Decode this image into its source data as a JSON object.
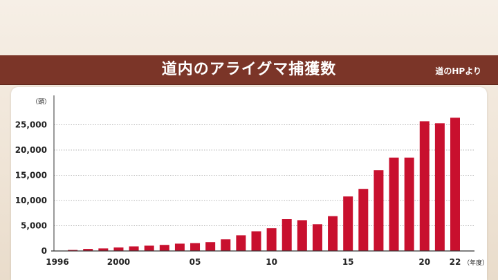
{
  "header": {
    "title": "道内のアライグマ捕獲数",
    "source": "道のHPより"
  },
  "colors": {
    "banner": "#7b3528",
    "bar": "#c8102e"
  },
  "chart_data": {
    "type": "bar",
    "title": "道内のアライグマ捕獲数",
    "ylabel": "（頭）",
    "xlabel": "（年度）",
    "ylim": [
      0,
      30000
    ],
    "grid": true,
    "legend": "none",
    "categories": [
      "1996",
      "1997",
      "1998",
      "1999",
      "2000",
      "2001",
      "2002",
      "2003",
      "2004",
      "2005",
      "2006",
      "2007",
      "2008",
      "2009",
      "2010",
      "2011",
      "2012",
      "2013",
      "2014",
      "2015",
      "2016",
      "2017",
      "2018",
      "2019",
      "2020",
      "2021",
      "2022"
    ],
    "values": [
      0,
      200,
      400,
      500,
      700,
      900,
      1050,
      1200,
      1450,
      1550,
      1750,
      2300,
      3100,
      3900,
      4500,
      6300,
      6100,
      5300,
      6900,
      10800,
      12300,
      16000,
      18500,
      18500,
      25700,
      25300,
      26400
    ],
    "yticks": [
      0,
      5000,
      10000,
      15000,
      20000,
      25000
    ],
    "ytick_labels": [
      "0",
      "5,000",
      "10,000",
      "15,000",
      "20,000",
      "25,000"
    ],
    "xtick_labels": [
      {
        "index": 0,
        "label": "1996"
      },
      {
        "index": 4,
        "label": "2000"
      },
      {
        "index": 9,
        "label": "05"
      },
      {
        "index": 14,
        "label": "10"
      },
      {
        "index": 19,
        "label": "15"
      },
      {
        "index": 24,
        "label": "20"
      },
      {
        "index": 26,
        "label": "22"
      }
    ]
  }
}
